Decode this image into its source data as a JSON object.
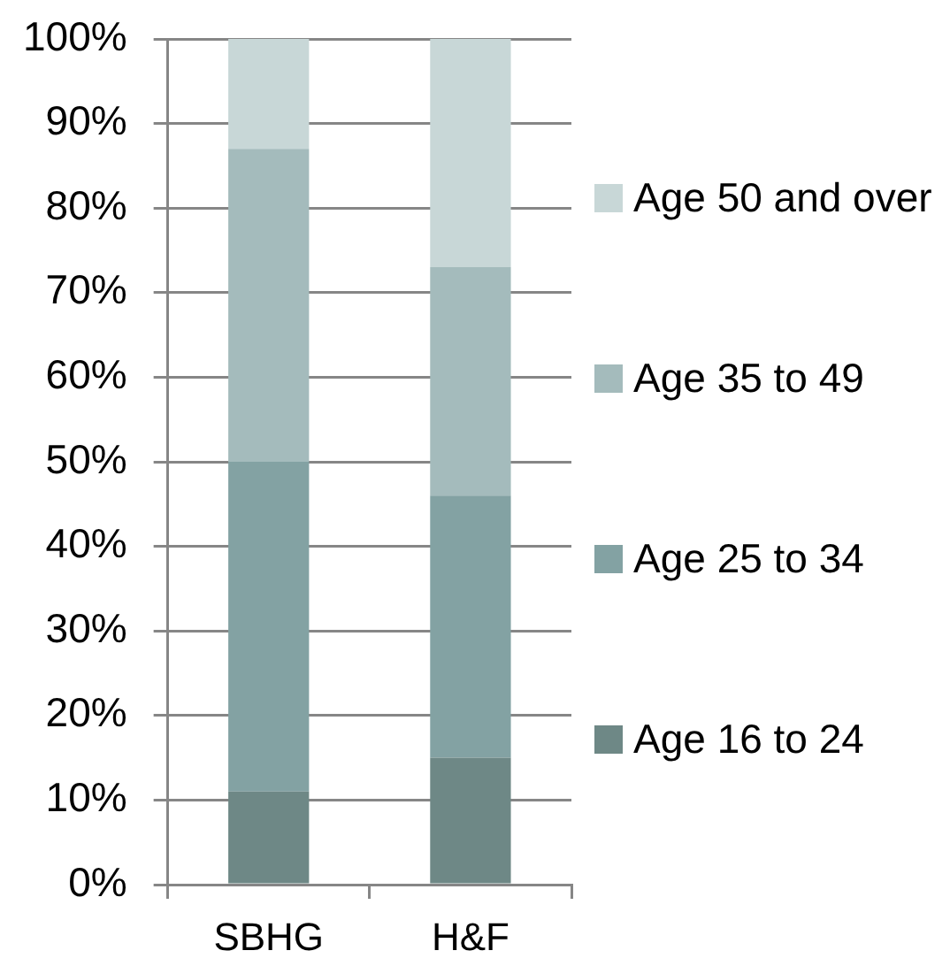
{
  "chart_data": {
    "type": "bar",
    "stacked": true,
    "categories": [
      "SBHG",
      "H&F"
    ],
    "series": [
      {
        "name": "Age 16 to 24",
        "color": "#6e8886",
        "values": [
          11,
          15
        ]
      },
      {
        "name": "Age 25 to 34",
        "color": "#83a2a3",
        "values": [
          39,
          31
        ]
      },
      {
        "name": "Age 35 to 49",
        "color": "#a4bbbc",
        "values": [
          37,
          27
        ]
      },
      {
        "name": "Age 50 and over",
        "color": "#c8d7d7",
        "values": [
          13,
          27
        ]
      }
    ],
    "ylim": [
      0,
      100
    ],
    "yticks": [
      {
        "value": 0,
        "label": "0%"
      },
      {
        "value": 10,
        "label": "10%"
      },
      {
        "value": 20,
        "label": "20%"
      },
      {
        "value": 30,
        "label": "30%"
      },
      {
        "value": 40,
        "label": "40%"
      },
      {
        "value": 50,
        "label": "50%"
      },
      {
        "value": 60,
        "label": "60%"
      },
      {
        "value": 70,
        "label": "70%"
      },
      {
        "value": 80,
        "label": "80%"
      },
      {
        "value": 90,
        "label": "90%"
      },
      {
        "value": 100,
        "label": "100%"
      }
    ],
    "grid": "y",
    "legend": "right"
  }
}
